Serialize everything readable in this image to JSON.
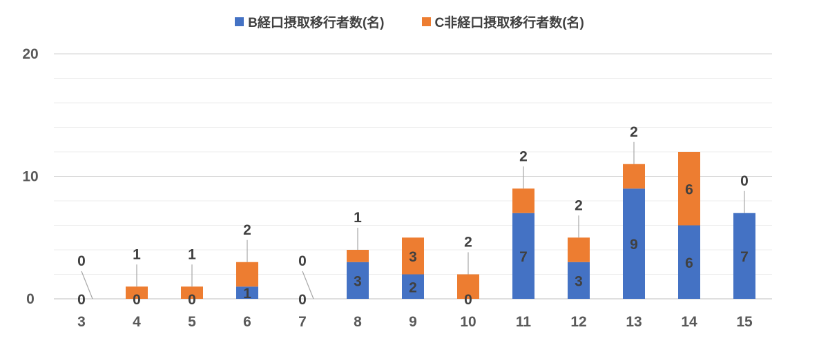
{
  "chart_data": {
    "type": "bar",
    "stacked": true,
    "categories": [
      "3",
      "4",
      "5",
      "6",
      "7",
      "8",
      "9",
      "10",
      "11",
      "12",
      "13",
      "14",
      "15"
    ],
    "series": [
      {
        "name": "B経口摂取移行者数(名)",
        "color": "#4472C4",
        "values": [
          0,
          0,
          0,
          1,
          0,
          3,
          2,
          0,
          7,
          3,
          9,
          6,
          7
        ]
      },
      {
        "name": "C非経口摂取移行者数(名)",
        "color": "#ED7D31",
        "values": [
          0,
          1,
          1,
          2,
          0,
          1,
          3,
          2,
          2,
          2,
          2,
          6,
          0
        ]
      }
    ],
    "ylim": [
      0,
      20
    ],
    "yticks": [
      "0",
      "10",
      "20"
    ],
    "grid": true,
    "legend": "top-center",
    "title": "",
    "xlabel": "",
    "ylabel": ""
  }
}
